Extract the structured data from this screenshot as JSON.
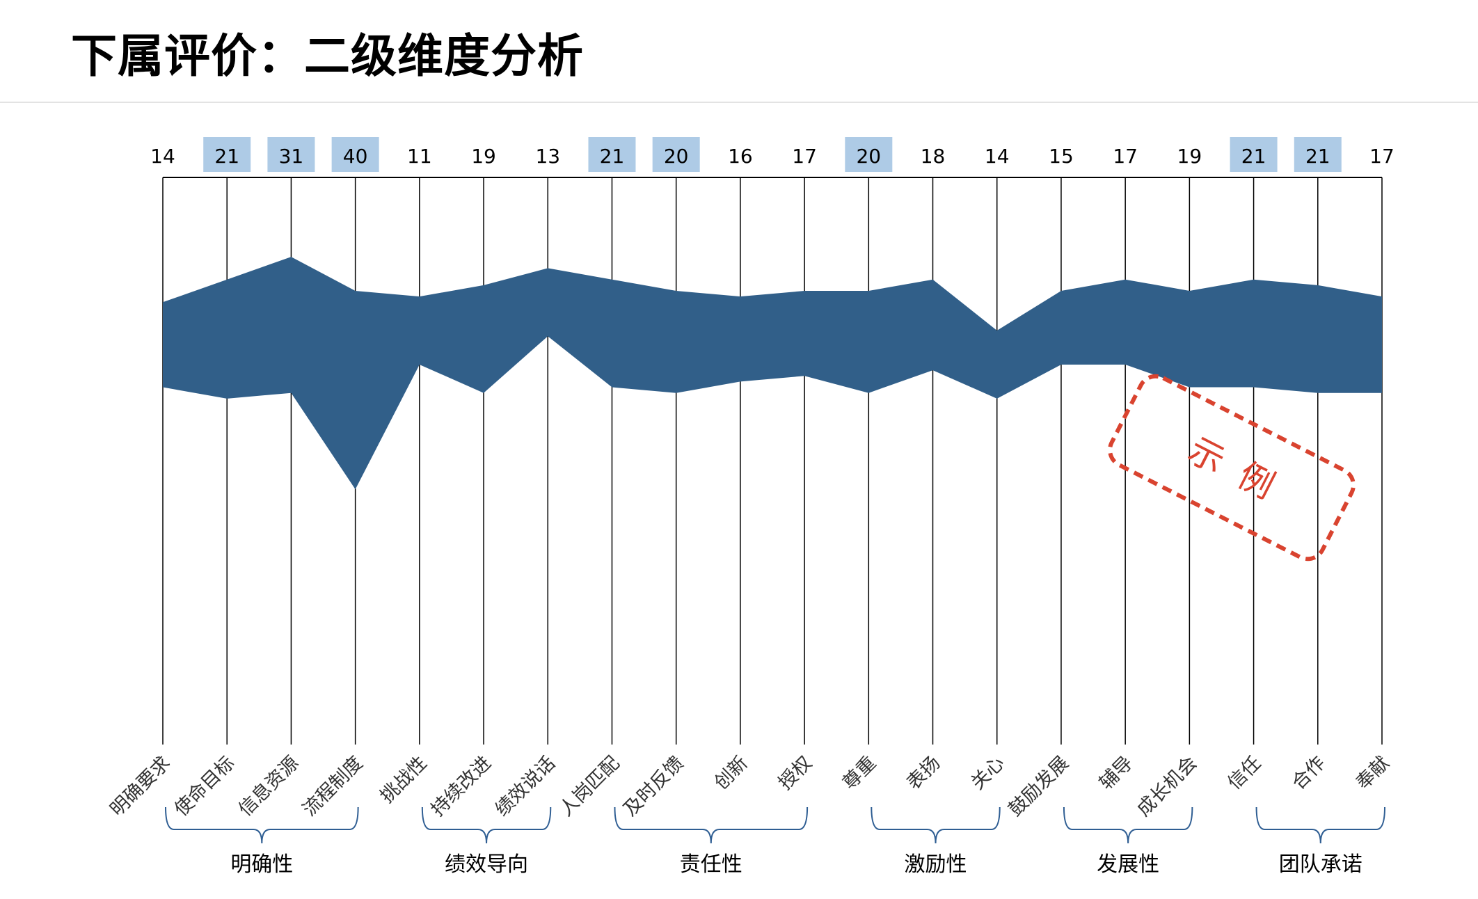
{
  "title": "下属评价：二级维度分析",
  "colors": {
    "band": "#315f89",
    "highlight": "#aecbe6",
    "axis_line": "#000000",
    "bracket": "#2f5e93",
    "stamp": "#d9432f"
  },
  "stamp_text": [
    "示",
    "例"
  ],
  "chart_data": {
    "type": "area",
    "subtype": "range band across parallel vertical axes",
    "categories": [
      "明确要求",
      "使命目标",
      "信息资源",
      "流程制度",
      "挑战性",
      "持续改进",
      "绩效说话",
      "人岗匹配",
      "及时反馈",
      "创新",
      "授权",
      "尊重",
      "表扬",
      "关心",
      "鼓励发展",
      "辅导",
      "成长机会",
      "信任",
      "合作",
      "奉献"
    ],
    "counts": [
      14,
      21,
      31,
      40,
      11,
      19,
      13,
      21,
      20,
      16,
      17,
      20,
      18,
      14,
      15,
      17,
      19,
      21,
      21,
      17
    ],
    "highlighted": [
      false,
      true,
      true,
      true,
      false,
      false,
      false,
      true,
      true,
      false,
      false,
      true,
      false,
      false,
      false,
      false,
      false,
      true,
      true,
      false
    ],
    "upper": [
      78,
      82,
      86,
      80,
      79,
      81,
      84,
      82,
      80,
      79,
      80,
      80,
      82,
      73,
      80,
      82,
      80,
      82,
      81,
      79
    ],
    "lower": [
      63,
      61,
      62,
      45,
      67,
      62,
      72,
      63,
      62,
      64,
      65,
      62,
      66,
      61,
      67,
      67,
      63,
      63,
      62,
      62
    ],
    "ylim": [
      0,
      100
    ],
    "groups": [
      {
        "name": "明确性",
        "from": 0,
        "to": 3
      },
      {
        "name": "绩效导向",
        "from": 4,
        "to": 6
      },
      {
        "name": "责任性",
        "from": 7,
        "to": 10
      },
      {
        "name": "激励性",
        "from": 11,
        "to": 13
      },
      {
        "name": "发展性",
        "from": 14,
        "to": 16
      },
      {
        "name": "团队承诺",
        "from": 17,
        "to": 19
      }
    ]
  }
}
